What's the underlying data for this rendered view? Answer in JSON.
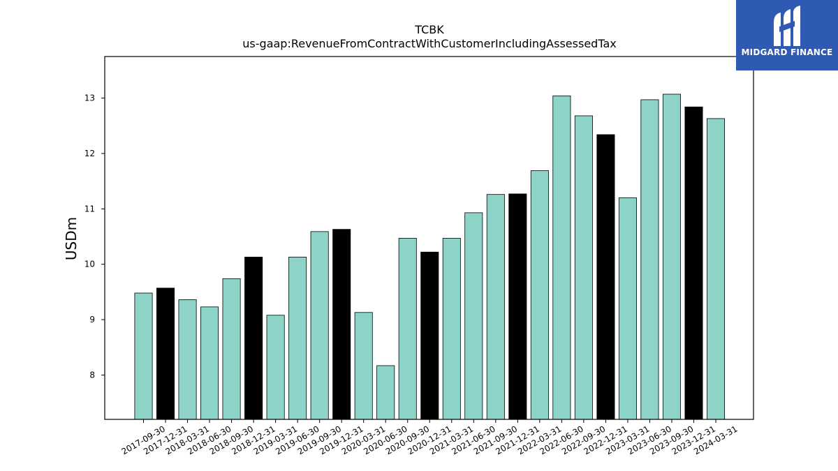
{
  "chart_data": {
    "type": "bar",
    "title": "TCBK",
    "subtitle": "us-gaap:RevenueFromContractWithCustomerIncludingAssessedTax",
    "xlabel": "",
    "ylabel": "USDm",
    "ylim": [
      7.2,
      13.75
    ],
    "yticks": [
      8,
      9,
      10,
      11,
      12,
      13
    ],
    "grid": false,
    "categories": [
      "2017-09-30",
      "2017-12-31",
      "2018-03-31",
      "2018-06-30",
      "2018-09-30",
      "2018-12-31",
      "2019-03-31",
      "2019-06-30",
      "2019-09-30",
      "2019-12-31",
      "2020-03-31",
      "2020-06-30",
      "2020-09-30",
      "2020-12-31",
      "2021-03-31",
      "2021-06-30",
      "2021-09-30",
      "2021-12-31",
      "2022-03-31",
      "2022-06-30",
      "2022-09-30",
      "2022-12-31",
      "2023-03-31",
      "2023-06-30",
      "2023-09-30",
      "2023-12-31",
      "2024-03-31"
    ],
    "values": [
      9.48,
      9.57,
      9.36,
      9.23,
      9.74,
      10.13,
      9.08,
      10.13,
      10.59,
      10.63,
      9.13,
      8.17,
      10.47,
      10.22,
      10.47,
      10.93,
      11.26,
      11.27,
      11.69,
      13.04,
      12.68,
      12.34,
      11.2,
      12.97,
      13.07,
      12.84,
      12.63
    ],
    "bar_colors": [
      "#8dd3c7",
      "#000000",
      "#8dd3c7",
      "#8dd3c7",
      "#8dd3c7",
      "#000000",
      "#8dd3c7",
      "#8dd3c7",
      "#8dd3c7",
      "#000000",
      "#8dd3c7",
      "#8dd3c7",
      "#8dd3c7",
      "#000000",
      "#8dd3c7",
      "#8dd3c7",
      "#8dd3c7",
      "#000000",
      "#8dd3c7",
      "#8dd3c7",
      "#8dd3c7",
      "#000000",
      "#8dd3c7",
      "#8dd3c7",
      "#8dd3c7",
      "#000000",
      "#8dd3c7"
    ]
  },
  "logo": {
    "text": "MIDGARD FINANCE",
    "background": "#2f5ab3"
  }
}
